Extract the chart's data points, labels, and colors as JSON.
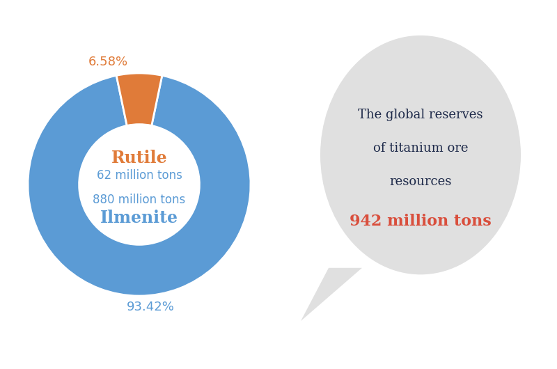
{
  "ilmenite_pct": 93.42,
  "rutile_pct": 6.58,
  "ilmenite_tons": "880 million tons",
  "rutile_tons": "62 million tons",
  "ilmenite_label": "Ilmenite",
  "rutile_label": "Rutile",
  "ilmenite_color": "#5b9bd5",
  "rutile_color": "#e07b39",
  "bubble_text_line1": "The global reserves",
  "bubble_text_line2": "of titanium ore",
  "bubble_text_line3": "resources",
  "bubble_highlight": "942 million tons",
  "bubble_highlight_color": "#d94f3d",
  "bubble_text_color": "#1e2a4a",
  "bubble_bg_color": "#e0e0e0",
  "background_color": "#ffffff",
  "ilmenite_pct_label": "93.42%",
  "rutile_pct_label": "6.58%"
}
